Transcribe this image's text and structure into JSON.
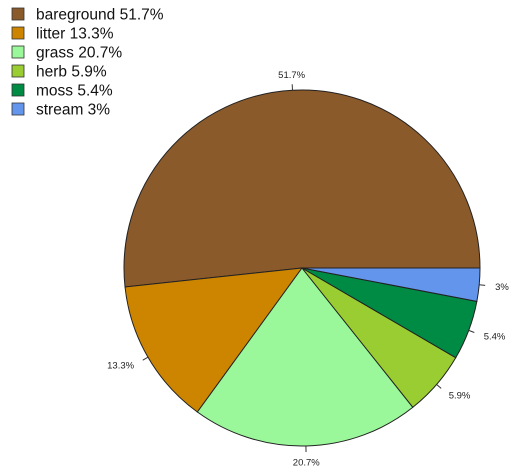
{
  "chart_data": {
    "type": "pie",
    "slices": [
      {
        "name": "bareground",
        "value": 51.7,
        "legend_label": "bareground 51.7%",
        "data_label": "51.7%",
        "color": "#8B5A2B"
      },
      {
        "name": "litter",
        "value": 13.3,
        "legend_label": "litter 13.3%",
        "data_label": "13.3%",
        "color": "#CD8500"
      },
      {
        "name": "grass",
        "value": 20.7,
        "legend_label": "grass 20.7%",
        "data_label": "20.7%",
        "color": "#9AF79A"
      },
      {
        "name": "herb",
        "value": 5.9,
        "legend_label": "herb 5.9%",
        "data_label": "5.9%",
        "color": "#9ACD32"
      },
      {
        "name": "moss",
        "value": 5.4,
        "legend_label": "moss 5.4%",
        "data_label": "5.4%",
        "color": "#008B45"
      },
      {
        "name": "stream",
        "value": 3,
        "legend_label": "stream 3%",
        "data_label": "3%",
        "color": "#6495ED"
      }
    ],
    "start_angle": "3 o'clock",
    "direction": "counterclockwise",
    "legend_position": "top-left",
    "slice_border_color": "#222222",
    "tick_color": "#333333"
  }
}
